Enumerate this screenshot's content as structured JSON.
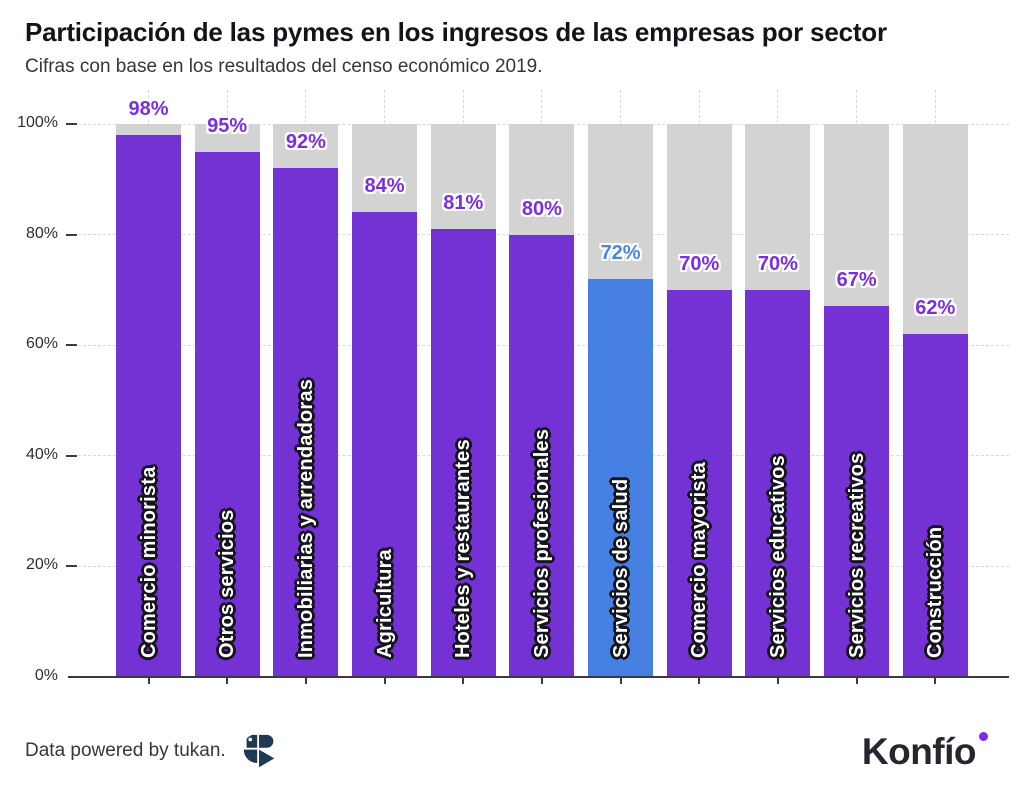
{
  "chart_data": {
    "type": "bar",
    "title": "Participación de las pymes en los ingresos de las empresas por sector",
    "subtitle": "Cifras con base en los resultados del censo económico 2019.",
    "categories": [
      "Comercio minorista",
      "Otros servicios",
      "Inmobiliarias y arrendadoras",
      "Agricultura",
      "Hoteles y restaurantes",
      "Servicios profesionales",
      "Servicios de salud",
      "Comercio mayorista",
      "Servicios educativos",
      "Servicios recreativos",
      "Construcción"
    ],
    "values": [
      98,
      95,
      92,
      84,
      81,
      80,
      72,
      70,
      70,
      67,
      62
    ],
    "value_labels": [
      "98%",
      "95%",
      "92%",
      "84%",
      "81%",
      "80%",
      "72%",
      "70%",
      "70%",
      "67%",
      "62%"
    ],
    "highlight_index": 6,
    "xlabel": "",
    "ylabel": "",
    "ylim": [
      0,
      100
    ],
    "yticks": [
      0,
      20,
      40,
      60,
      80,
      100
    ],
    "ytick_labels": [
      "0%",
      "20%",
      "40%",
      "60%",
      "80%",
      "100%"
    ],
    "grid": "dashed",
    "legend": null,
    "colors": {
      "bar": "#7431D4",
      "highlight": "#4680E2",
      "track": "#D3D3D3",
      "grid": "#D9D9D9",
      "axis": "#3A3A40",
      "value_label": "#7B2FE2",
      "value_label_highlight": "#4A86E8"
    }
  },
  "footer": {
    "attribution": "Data powered by tukan.",
    "tukan_logo_icon": "toucan-logo",
    "tukan_logo_color": "#1E3A52",
    "brand": "Konfío",
    "brand_dot_icon": "brand-dot",
    "brand_dot_color": "#7C2BE8"
  }
}
